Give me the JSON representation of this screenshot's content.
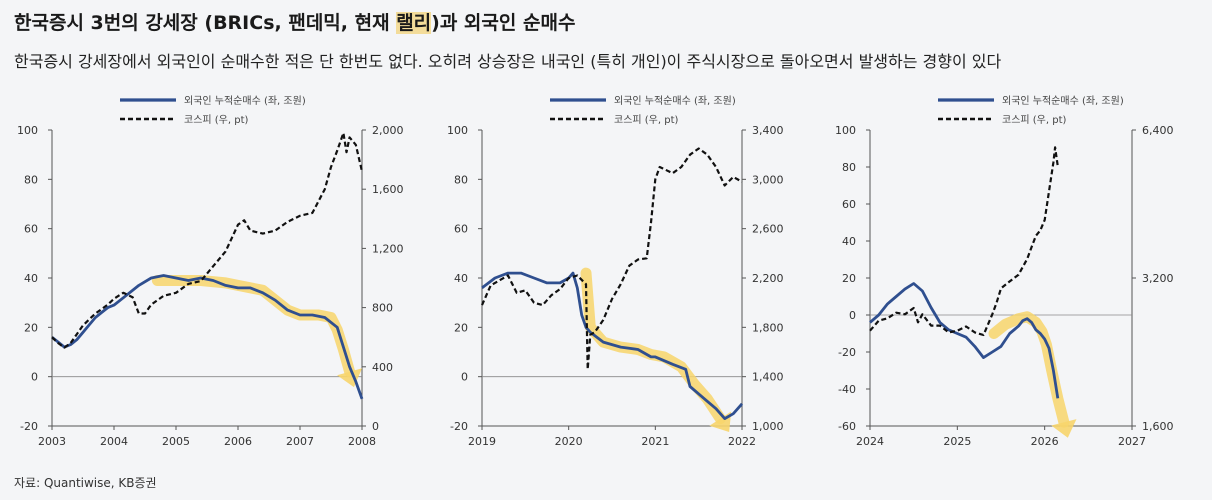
{
  "header": {
    "title_pre": "한국증시 3번의 강세장 (BRICs, 팬데믹, 현재 ",
    "title_hl": "랠리",
    "title_post": ")과 외국인 순매수",
    "subtitle": "한국증시 강세장에서 외국인이 순매수한 적은 단 한번도 없다. 오히려 상승장은 내국인 (특히 개인)이 주식시장으로 돌아오면서 발생하는 경향이 있다"
  },
  "source": "자료: Quantiwise, KB증권",
  "colors": {
    "foreign": "#2f4f8f",
    "kospi": "#111111",
    "highlight": "#f7d56b"
  },
  "chart_data": [
    {
      "type": "line",
      "legend": [
        "외국인 누적순매수 (좌, 조원)",
        "코스피 (우, pt)"
      ],
      "x_ticks": [
        "2003",
        "2004",
        "2005",
        "2006",
        "2007",
        "2008"
      ],
      "x_range": [
        2003,
        2008
      ],
      "y_left_ticks": [
        "100",
        "80",
        "60",
        "40",
        "20",
        "0",
        "-20"
      ],
      "y_left_range": [
        -20,
        100
      ],
      "y_right_ticks": [
        "2,000",
        "1,600",
        "1,200",
        "800",
        "400",
        "0"
      ],
      "y_right_range": [
        0,
        2000
      ],
      "series": [
        {
          "name": "외국인 누적순매수 (좌, 조원)",
          "axis": "left",
          "x": [
            2003.0,
            2003.1,
            2003.2,
            2003.3,
            2003.4,
            2003.5,
            2003.6,
            2003.7,
            2003.8,
            2003.9,
            2004.0,
            2004.2,
            2004.4,
            2004.6,
            2004.8,
            2005.0,
            2005.2,
            2005.4,
            2005.6,
            2005.8,
            2006.0,
            2006.2,
            2006.4,
            2006.6,
            2006.8,
            2007.0,
            2007.2,
            2007.4,
            2007.6,
            2007.7,
            2007.8,
            2007.9,
            2008.0
          ],
          "y": [
            16,
            14,
            12,
            13,
            15,
            18,
            21,
            24,
            26,
            28,
            29,
            33,
            37,
            40,
            41,
            40,
            39,
            40,
            39,
            37,
            36,
            36,
            34,
            31,
            27,
            25,
            25,
            24,
            20,
            12,
            4,
            -2,
            -9
          ]
        },
        {
          "name": "코스피 (우, pt)",
          "axis": "right",
          "x": [
            2003.0,
            2003.1,
            2003.2,
            2003.3,
            2003.4,
            2003.5,
            2003.6,
            2003.7,
            2003.8,
            2003.9,
            2004.0,
            2004.15,
            2004.3,
            2004.4,
            2004.5,
            2004.6,
            2004.8,
            2005.0,
            2005.2,
            2005.4,
            2005.6,
            2005.8,
            2006.0,
            2006.1,
            2006.2,
            2006.4,
            2006.6,
            2006.8,
            2007.0,
            2007.2,
            2007.4,
            2007.5,
            2007.6,
            2007.7,
            2007.75,
            2007.8,
            2007.9,
            2008.0
          ],
          "y": [
            600,
            560,
            530,
            560,
            620,
            680,
            720,
            760,
            790,
            820,
            860,
            900,
            870,
            760,
            760,
            820,
            880,
            900,
            960,
            980,
            1080,
            1180,
            1360,
            1390,
            1320,
            1300,
            1320,
            1380,
            1420,
            1440,
            1600,
            1750,
            1860,
            1980,
            1850,
            1950,
            1900,
            1720
          ]
        }
      ],
      "highlight": {
        "x": [
          2004.7,
          2005.0,
          2005.4,
          2005.8,
          2006.0,
          2006.4,
          2006.6,
          2006.8,
          2007.0,
          2007.3,
          2007.5,
          2007.6,
          2007.7,
          2007.8
        ],
        "y": [
          39,
          39,
          39,
          38,
          37,
          35,
          31,
          27,
          25,
          25,
          24,
          19,
          11,
          2
        ]
      }
    },
    {
      "type": "line",
      "legend": [
        "외국인 누적순매수 (좌, 조원)",
        "코스피 (우, pt)"
      ],
      "x_ticks": [
        "2019",
        "2020",
        "2021",
        "2022"
      ],
      "x_range": [
        2019,
        2022
      ],
      "y_left_ticks": [
        "100",
        "80",
        "60",
        "40",
        "20",
        "0",
        "-20"
      ],
      "y_left_range": [
        -20,
        100
      ],
      "y_right_ticks": [
        "3,400",
        "3,000",
        "2,600",
        "2,200",
        "1,800",
        "1,400",
        "1,000"
      ],
      "y_right_range": [
        1000,
        3400
      ],
      "series": [
        {
          "name": "외국인 누적순매수 (좌, 조원)",
          "axis": "left",
          "x": [
            2019.0,
            2019.15,
            2019.3,
            2019.45,
            2019.6,
            2019.75,
            2019.9,
            2020.0,
            2020.05,
            2020.1,
            2020.15,
            2020.2,
            2020.25,
            2020.4,
            2020.6,
            2020.8,
            2020.95,
            2021.0,
            2021.2,
            2021.35,
            2021.4,
            2021.5,
            2021.6,
            2021.7,
            2021.8,
            2021.9,
            2022.0
          ],
          "y": [
            36,
            40,
            42,
            42,
            40,
            38,
            38,
            40,
            42,
            36,
            25,
            20,
            18,
            14,
            12,
            11,
            8,
            8,
            5,
            3,
            -4,
            -7,
            -10,
            -13,
            -17,
            -15,
            -11
          ]
        },
        {
          "name": "코스피 (우, pt)",
          "axis": "right",
          "x": [
            2019.0,
            2019.1,
            2019.2,
            2019.3,
            2019.4,
            2019.5,
            2019.6,
            2019.7,
            2019.8,
            2019.9,
            2020.0,
            2020.1,
            2020.2,
            2020.22,
            2020.25,
            2020.3,
            2020.4,
            2020.5,
            2020.6,
            2020.7,
            2020.8,
            2020.9,
            2020.95,
            2021.0,
            2021.05,
            2021.2,
            2021.3,
            2021.4,
            2021.5,
            2021.6,
            2021.7,
            2021.8,
            2021.9,
            2022.0
          ],
          "y": [
            1980,
            2140,
            2180,
            2220,
            2080,
            2100,
            2000,
            1980,
            2060,
            2110,
            2200,
            2220,
            2150,
            1460,
            1740,
            1760,
            1860,
            2030,
            2150,
            2300,
            2350,
            2360,
            2650,
            3000,
            3100,
            3050,
            3100,
            3200,
            3250,
            3200,
            3100,
            2950,
            3020,
            2980
          ]
        }
      ],
      "highlight": {
        "x": [
          2020.2,
          2020.25,
          2020.4,
          2020.6,
          2020.8,
          2020.95,
          2021.1,
          2021.3,
          2021.45,
          2021.6,
          2021.75
        ],
        "y": [
          42,
          20,
          14,
          12,
          11,
          9,
          8,
          4,
          -3,
          -9,
          -17
        ]
      }
    },
    {
      "type": "line",
      "legend": [
        "외국인 누적순매수 (좌, 조원)",
        "코스피 (우, pt)"
      ],
      "x_ticks": [
        "2024",
        "2025",
        "2026",
        "2027"
      ],
      "x_range": [
        2024,
        2027
      ],
      "y_left_ticks": [
        "100",
        "80",
        "60",
        "40",
        "20",
        "0",
        "-20",
        "-40",
        "-60"
      ],
      "y_left_range": [
        -60,
        100
      ],
      "y_right_ticks": [
        "6,400",
        "3,200",
        "1,600"
      ],
      "y_right_range": [
        1600,
        6400
      ],
      "y_right_scale": "log",
      "series": [
        {
          "name": "외국인 누적순매수 (좌, 조원)",
          "axis": "left",
          "x": [
            2024.0,
            2024.1,
            2024.2,
            2024.3,
            2024.4,
            2024.5,
            2024.6,
            2024.7,
            2024.8,
            2024.9,
            2025.0,
            2025.1,
            2025.2,
            2025.3,
            2025.4,
            2025.5,
            2025.6,
            2025.7,
            2025.75,
            2025.8,
            2025.85,
            2025.9,
            2025.95,
            2026.0,
            2026.05,
            2026.1,
            2026.15
          ],
          "y": [
            -4,
            0,
            6,
            10,
            14,
            17,
            13,
            4,
            -4,
            -8,
            -10,
            -12,
            -17,
            -23,
            -20,
            -17,
            -10,
            -6,
            -3,
            -2,
            -4,
            -8,
            -10,
            -13,
            -18,
            -30,
            -45
          ]
        },
        {
          "name": "코스피 (우, pt)",
          "axis": "right",
          "x": [
            2024.0,
            2024.1,
            2024.2,
            2024.3,
            2024.4,
            2024.5,
            2024.55,
            2024.6,
            2024.7,
            2024.8,
            2024.9,
            2025.0,
            2025.1,
            2025.2,
            2025.3,
            2025.4,
            2025.45,
            2025.5,
            2025.6,
            2025.7,
            2025.8,
            2025.85,
            2025.9,
            2025.95,
            2026.0,
            2026.05,
            2026.1,
            2026.12,
            2026.15
          ],
          "y": [
            2500,
            2620,
            2650,
            2720,
            2700,
            2780,
            2600,
            2700,
            2560,
            2560,
            2480,
            2500,
            2550,
            2480,
            2450,
            2700,
            2850,
            3050,
            3150,
            3250,
            3500,
            3700,
            3900,
            4000,
            4200,
            4800,
            5500,
            5900,
            5400
          ]
        }
      ],
      "highlight": {
        "x": [
          2025.42,
          2025.55,
          2025.7,
          2025.8,
          2025.9,
          2025.97,
          2026.02,
          2026.08,
          2026.15,
          2026.22
        ],
        "y": [
          -10,
          -5,
          -2,
          -1,
          -4,
          -9,
          -16,
          -30,
          -45,
          -58
        ]
      }
    }
  ]
}
